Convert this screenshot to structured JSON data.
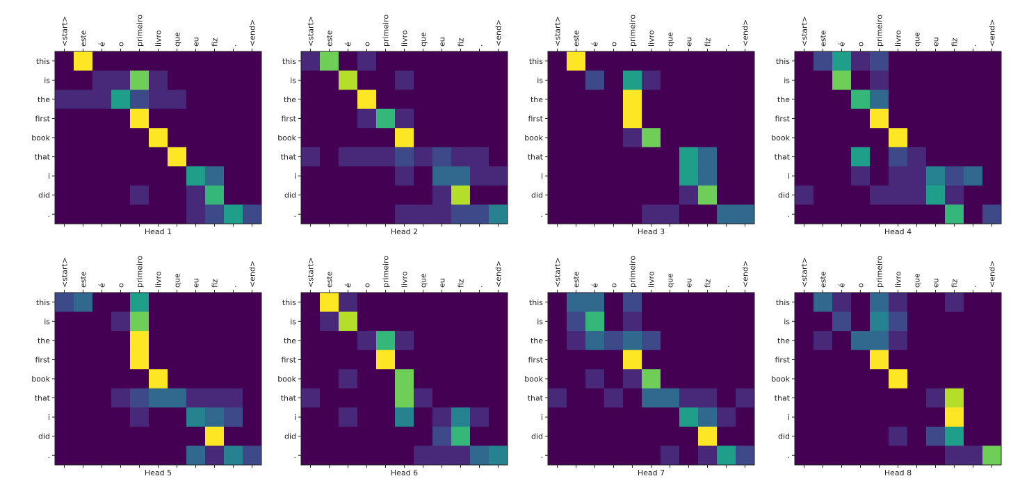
{
  "chart_data": {
    "type": "heatmap",
    "figure_title": "",
    "x_tokens": [
      "<start>",
      "este",
      "é",
      "o",
      "primeiro",
      "livro",
      "que",
      "eu",
      "fiz",
      ".",
      "<end>"
    ],
    "y_tokens": [
      "this",
      "is",
      "the",
      "first",
      "book",
      "that",
      "i",
      "did",
      "."
    ],
    "colormap": [
      "#440154",
      "#482878",
      "#3e4989",
      "#31688e",
      "#26828e",
      "#1f9e89",
      "#35b779",
      "#6ece58",
      "#b5de2b",
      "#fde725"
    ],
    "value_range": [
      0,
      1
    ],
    "heads": [
      {
        "title": "Head 1",
        "values": [
          [
            0.03,
            1.0,
            0.02,
            0.02,
            0.02,
            0.02,
            0.02,
            0.02,
            0.02,
            0.02,
            0.02
          ],
          [
            0.02,
            0.05,
            0.1,
            0.15,
            0.78,
            0.08,
            0.02,
            0.02,
            0.02,
            0.02,
            0.02
          ],
          [
            0.08,
            0.1,
            0.15,
            0.6,
            0.2,
            0.12,
            0.08,
            0.02,
            0.02,
            0.02,
            0.02
          ],
          [
            0.02,
            0.02,
            0.02,
            0.02,
            1.0,
            0.02,
            0.02,
            0.02,
            0.02,
            0.02,
            0.02
          ],
          [
            0.02,
            0.02,
            0.02,
            0.02,
            0.02,
            1.0,
            0.02,
            0.02,
            0.02,
            0.02,
            0.02
          ],
          [
            0.02,
            0.02,
            0.02,
            0.02,
            0.02,
            0.05,
            0.98,
            0.02,
            0.02,
            0.02,
            0.02
          ],
          [
            0.02,
            0.02,
            0.02,
            0.02,
            0.05,
            0.05,
            0.05,
            0.5,
            0.3,
            0.05,
            0.02
          ],
          [
            0.02,
            0.02,
            0.02,
            0.02,
            0.15,
            0.05,
            0.05,
            0.15,
            0.7,
            0.05,
            0.02
          ],
          [
            0.02,
            0.02,
            0.02,
            0.02,
            0.02,
            0.02,
            0.05,
            0.15,
            0.2,
            0.55,
            0.25
          ]
        ]
      },
      {
        "title": "Head 2",
        "values": [
          [
            0.1,
            0.75,
            0.02,
            0.15,
            0.05,
            0.02,
            0.02,
            0.02,
            0.02,
            0.02,
            0.02
          ],
          [
            0.02,
            0.05,
            0.9,
            0.05,
            0.05,
            0.08,
            0.02,
            0.02,
            0.02,
            0.02,
            0.02
          ],
          [
            0.02,
            0.02,
            0.05,
            1.0,
            0.05,
            0.02,
            0.02,
            0.02,
            0.02,
            0.02,
            0.02
          ],
          [
            0.02,
            0.05,
            0.05,
            0.1,
            0.7,
            0.15,
            0.02,
            0.02,
            0.02,
            0.02,
            0.02
          ],
          [
            0.02,
            0.02,
            0.02,
            0.02,
            0.05,
            1.0,
            0.02,
            0.02,
            0.02,
            0.02,
            0.02
          ],
          [
            0.1,
            0.05,
            0.1,
            0.15,
            0.1,
            0.25,
            0.1,
            0.2,
            0.1,
            0.08,
            0.05
          ],
          [
            0.05,
            0.05,
            0.05,
            0.02,
            0.05,
            0.08,
            0.05,
            0.38,
            0.38,
            0.1,
            0.08
          ],
          [
            0.02,
            0.02,
            0.02,
            0.02,
            0.02,
            0.02,
            0.05,
            0.1,
            0.9,
            0.02,
            0.02
          ],
          [
            0.05,
            0.02,
            0.02,
            0.02,
            0.02,
            0.1,
            0.1,
            0.12,
            0.2,
            0.25,
            0.45
          ]
        ]
      },
      {
        "title": "Head 3",
        "values": [
          [
            0.02,
            1.0,
            0.05,
            0.02,
            0.02,
            0.02,
            0.02,
            0.02,
            0.02,
            0.02,
            0.02
          ],
          [
            0.02,
            0.05,
            0.2,
            0.05,
            0.55,
            0.08,
            0.02,
            0.02,
            0.02,
            0.02,
            0.02
          ],
          [
            0.02,
            0.02,
            0.02,
            0.02,
            1.0,
            0.02,
            0.02,
            0.02,
            0.02,
            0.02,
            0.02
          ],
          [
            0.02,
            0.02,
            0.02,
            0.02,
            1.0,
            0.02,
            0.02,
            0.02,
            0.02,
            0.02,
            0.02
          ],
          [
            0.02,
            0.02,
            0.02,
            0.05,
            0.1,
            0.82,
            0.02,
            0.05,
            0.02,
            0.02,
            0.02
          ],
          [
            0.02,
            0.02,
            0.02,
            0.02,
            0.02,
            0.02,
            0.02,
            0.6,
            0.3,
            0.02,
            0.02
          ],
          [
            0.02,
            0.02,
            0.02,
            0.02,
            0.02,
            0.02,
            0.02,
            0.6,
            0.3,
            0.02,
            0.02
          ],
          [
            0.02,
            0.02,
            0.02,
            0.02,
            0.02,
            0.02,
            0.05,
            0.15,
            0.8,
            0.02,
            0.02
          ],
          [
            0.05,
            0.02,
            0.02,
            0.05,
            0.02,
            0.15,
            0.15,
            0.02,
            0.02,
            0.3,
            0.3
          ]
        ]
      },
      {
        "title": "Head 4",
        "values": [
          [
            0.02,
            0.2,
            0.5,
            0.1,
            0.25,
            0.05,
            0.02,
            0.02,
            0.02,
            0.02,
            0.02
          ],
          [
            0.02,
            0.05,
            0.78,
            0.05,
            0.1,
            0.05,
            0.02,
            0.02,
            0.02,
            0.02,
            0.02
          ],
          [
            0.02,
            0.02,
            0.05,
            0.62,
            0.3,
            0.02,
            0.02,
            0.02,
            0.02,
            0.02,
            0.02
          ],
          [
            0.02,
            0.02,
            0.02,
            0.02,
            1.0,
            0.02,
            0.02,
            0.02,
            0.02,
            0.02,
            0.02
          ],
          [
            0.02,
            0.02,
            0.02,
            0.02,
            0.02,
            1.0,
            0.02,
            0.02,
            0.02,
            0.02,
            0.02
          ],
          [
            0.05,
            0.02,
            0.05,
            0.5,
            0.05,
            0.25,
            0.15,
            0.02,
            0.02,
            0.02,
            0.02
          ],
          [
            0.05,
            0.02,
            0.05,
            0.08,
            0.05,
            0.08,
            0.1,
            0.4,
            0.25,
            0.35,
            0.05
          ],
          [
            0.08,
            0.02,
            0.02,
            0.05,
            0.1,
            0.15,
            0.15,
            0.55,
            0.1,
            0.02,
            0.02
          ],
          [
            0.02,
            0.02,
            0.02,
            0.02,
            0.02,
            0.02,
            0.02,
            0.05,
            0.7,
            0.05,
            0.2
          ]
        ]
      },
      {
        "title": "Head 5",
        "values": [
          [
            0.2,
            0.3,
            0.05,
            0.05,
            0.5,
            0.05,
            0.02,
            0.02,
            0.05,
            0.02,
            0.02
          ],
          [
            0.02,
            0.02,
            0.05,
            0.08,
            0.8,
            0.02,
            0.02,
            0.02,
            0.02,
            0.02,
            0.02
          ],
          [
            0.02,
            0.02,
            0.02,
            0.05,
            1.0,
            0.02,
            0.02,
            0.02,
            0.02,
            0.02,
            0.02
          ],
          [
            0.02,
            0.02,
            0.02,
            0.02,
            1.0,
            0.02,
            0.02,
            0.02,
            0.02,
            0.02,
            0.02
          ],
          [
            0.02,
            0.02,
            0.02,
            0.02,
            0.02,
            1.0,
            0.02,
            0.02,
            0.02,
            0.02,
            0.02
          ],
          [
            0.02,
            0.02,
            0.02,
            0.08,
            0.2,
            0.35,
            0.3,
            0.15,
            0.15,
            0.08,
            0.02
          ],
          [
            0.02,
            0.02,
            0.02,
            0.02,
            0.08,
            0.05,
            0.05,
            0.4,
            0.3,
            0.25,
            0.02
          ],
          [
            0.02,
            0.02,
            0.02,
            0.02,
            0.02,
            0.02,
            0.02,
            0.05,
            1.0,
            0.02,
            0.02
          ],
          [
            0.02,
            0.02,
            0.02,
            0.02,
            0.02,
            0.02,
            0.05,
            0.3,
            0.15,
            0.4,
            0.2
          ]
        ]
      },
      {
        "title": "Head 6",
        "values": [
          [
            0.02,
            1.0,
            0.08,
            0.02,
            0.02,
            0.02,
            0.02,
            0.02,
            0.02,
            0.02,
            0.02
          ],
          [
            0.02,
            0.12,
            0.85,
            0.02,
            0.02,
            0.02,
            0.02,
            0.02,
            0.02,
            0.02,
            0.02
          ],
          [
            0.02,
            0.02,
            0.02,
            0.15,
            0.68,
            0.08,
            0.02,
            0.02,
            0.02,
            0.02,
            0.02
          ],
          [
            0.02,
            0.02,
            0.02,
            0.02,
            1.0,
            0.02,
            0.02,
            0.02,
            0.02,
            0.02,
            0.02
          ],
          [
            0.02,
            0.02,
            0.08,
            0.02,
            0.05,
            0.82,
            0.02,
            0.02,
            0.02,
            0.02,
            0.02
          ],
          [
            0.08,
            0.02,
            0.05,
            0.02,
            0.02,
            0.75,
            0.1,
            0.02,
            0.02,
            0.02,
            0.02
          ],
          [
            0.02,
            0.02,
            0.08,
            0.02,
            0.02,
            0.4,
            0.05,
            0.12,
            0.45,
            0.08,
            0.05
          ],
          [
            0.02,
            0.02,
            0.02,
            0.02,
            0.02,
            0.02,
            0.02,
            0.2,
            0.7,
            0.02,
            0.02
          ],
          [
            0.05,
            0.02,
            0.02,
            0.02,
            0.02,
            0.05,
            0.15,
            0.1,
            0.15,
            0.35,
            0.4
          ]
        ]
      },
      {
        "title": "Head 7",
        "values": [
          [
            0.02,
            0.38,
            0.38,
            0.05,
            0.2,
            0.05,
            0.02,
            0.02,
            0.02,
            0.02,
            0.02
          ],
          [
            0.02,
            0.2,
            0.62,
            0.05,
            0.15,
            0.02,
            0.02,
            0.02,
            0.02,
            0.02,
            0.02
          ],
          [
            0.02,
            0.1,
            0.3,
            0.25,
            0.3,
            0.2,
            0.02,
            0.02,
            0.02,
            0.02,
            0.02
          ],
          [
            0.02,
            0.02,
            0.02,
            0.02,
            1.0,
            0.02,
            0.02,
            0.02,
            0.02,
            0.02,
            0.02
          ],
          [
            0.02,
            0.02,
            0.08,
            0.02,
            0.08,
            0.82,
            0.02,
            0.02,
            0.02,
            0.02,
            0.02
          ],
          [
            0.08,
            0.05,
            0.05,
            0.08,
            0.02,
            0.3,
            0.3,
            0.15,
            0.12,
            0.05,
            0.08
          ],
          [
            0.02,
            0.02,
            0.02,
            0.02,
            0.02,
            0.02,
            0.02,
            0.5,
            0.35,
            0.12,
            0.02
          ],
          [
            0.02,
            0.02,
            0.02,
            0.02,
            0.02,
            0.02,
            0.02,
            0.05,
            1.0,
            0.02,
            0.02
          ],
          [
            0.05,
            0.02,
            0.02,
            0.02,
            0.02,
            0.02,
            0.12,
            0.05,
            0.08,
            0.6,
            0.25
          ]
        ]
      },
      {
        "title": "Head 8",
        "values": [
          [
            0.02,
            0.35,
            0.1,
            0.05,
            0.3,
            0.1,
            0.02,
            0.05,
            0.08,
            0.02,
            0.02
          ],
          [
            0.02,
            0.05,
            0.25,
            0.05,
            0.45,
            0.2,
            0.02,
            0.02,
            0.02,
            0.02,
            0.02
          ],
          [
            0.05,
            0.08,
            0.05,
            0.3,
            0.3,
            0.1,
            0.05,
            0.02,
            0.02,
            0.02,
            0.02
          ],
          [
            0.02,
            0.02,
            0.02,
            0.02,
            1.0,
            0.02,
            0.02,
            0.02,
            0.02,
            0.02,
            0.02
          ],
          [
            0.02,
            0.02,
            0.02,
            0.02,
            0.05,
            1.0,
            0.02,
            0.02,
            0.02,
            0.02,
            0.02
          ],
          [
            0.02,
            0.02,
            0.02,
            0.02,
            0.02,
            0.02,
            0.02,
            0.1,
            0.85,
            0.02,
            0.02
          ],
          [
            0.02,
            0.02,
            0.02,
            0.02,
            0.02,
            0.02,
            0.02,
            0.05,
            1.0,
            0.02,
            0.02
          ],
          [
            0.02,
            0.02,
            0.02,
            0.02,
            0.02,
            0.1,
            0.05,
            0.2,
            0.55,
            0.02,
            0.02
          ],
          [
            0.05,
            0.02,
            0.02,
            0.02,
            0.02,
            0.02,
            0.02,
            0.05,
            0.08,
            0.1,
            0.75
          ]
        ]
      }
    ]
  }
}
